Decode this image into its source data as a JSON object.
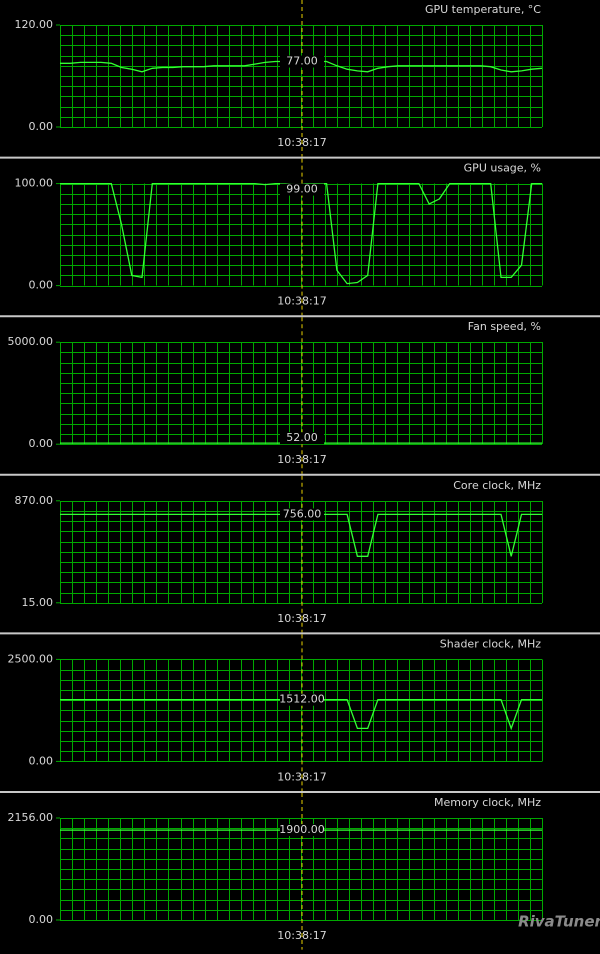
{
  "chart_data": [
    {
      "type": "line",
      "title": "GPU temperature, °C",
      "ylim": [
        0,
        120
      ],
      "yticks": [
        {
          "value": 0,
          "label": "0.00"
        },
        {
          "value": 120,
          "label": "120.00"
        }
      ],
      "grid": true,
      "cursor_time": "10:38:17",
      "cursor_value": 77,
      "cursor_value_label": "77.00",
      "color": "#33ff33",
      "categories": [
        null,
        null,
        null,
        null,
        null,
        null,
        null,
        null,
        null,
        null,
        null,
        null,
        null,
        null,
        null,
        null,
        null,
        null,
        null,
        null,
        null,
        null,
        null,
        null,
        null,
        null,
        null,
        null,
        null,
        null,
        null,
        null,
        null,
        null,
        null,
        null,
        null,
        null,
        null,
        null,
        null,
        null,
        null,
        null,
        null,
        null,
        null,
        null
      ],
      "values": [
        75,
        75,
        76,
        76,
        76,
        75,
        70,
        68,
        65,
        69,
        70,
        70,
        71,
        71,
        71,
        72,
        72,
        72,
        72,
        74,
        76,
        77,
        77,
        77,
        77,
        77,
        77,
        72,
        68,
        66,
        65,
        69,
        71,
        72,
        72,
        72,
        72,
        72,
        72,
        72,
        72,
        72,
        71,
        67,
        65,
        66,
        68,
        69
      ]
    },
    {
      "type": "line",
      "title": "GPU usage, %",
      "ylim": [
        0,
        100
      ],
      "yticks": [
        {
          "value": 0,
          "label": "0.00"
        },
        {
          "value": 100,
          "label": "100.00"
        }
      ],
      "grid": true,
      "cursor_time": "10:38:17",
      "cursor_value": 99,
      "cursor_value_label": "99.00",
      "color": "#33ff33",
      "categories": [
        null,
        null,
        null,
        null,
        null,
        null,
        null,
        null,
        null,
        null,
        null,
        null,
        null,
        null,
        null,
        null,
        null,
        null,
        null,
        null,
        null,
        null,
        null,
        null,
        null,
        null,
        null,
        null,
        null,
        null,
        null,
        null,
        null,
        null,
        null,
        null,
        null,
        null,
        null,
        null,
        null,
        null,
        null,
        null,
        null,
        null,
        null,
        null
      ],
      "values": [
        100,
        100,
        100,
        100,
        100,
        100,
        60,
        10,
        8,
        100,
        100,
        100,
        100,
        100,
        100,
        100,
        100,
        100,
        100,
        100,
        99,
        100,
        100,
        99,
        100,
        100,
        100,
        15,
        2,
        3,
        10,
        100,
        100,
        100,
        100,
        100,
        80,
        85,
        100,
        100,
        100,
        100,
        100,
        8,
        8,
        20,
        100,
        100
      ]
    },
    {
      "type": "line",
      "title": "Fan speed, %",
      "ylim": [
        0,
        5000
      ],
      "yticks": [
        {
          "value": 0,
          "label": "0.00"
        },
        {
          "value": 5000,
          "label": "5000.00"
        }
      ],
      "grid": true,
      "cursor_time": "10:38:17",
      "cursor_value": 52,
      "cursor_value_label": "52.00",
      "color": "#33ff33",
      "categories": [
        null,
        null,
        null,
        null,
        null,
        null,
        null,
        null,
        null,
        null,
        null,
        null,
        null,
        null,
        null,
        null,
        null,
        null,
        null,
        null,
        null,
        null,
        null,
        null,
        null,
        null,
        null,
        null,
        null,
        null,
        null,
        null,
        null,
        null,
        null,
        null,
        null,
        null,
        null,
        null,
        null,
        null,
        null,
        null,
        null,
        null,
        null,
        null
      ],
      "values": [
        52,
        52,
        52,
        52,
        52,
        52,
        52,
        52,
        52,
        52,
        52,
        52,
        52,
        52,
        52,
        52,
        52,
        52,
        52,
        52,
        52,
        52,
        52,
        52,
        52,
        52,
        52,
        52,
        52,
        52,
        52,
        52,
        52,
        52,
        52,
        52,
        52,
        52,
        52,
        52,
        52,
        52,
        52,
        52,
        52,
        52,
        52,
        52
      ]
    },
    {
      "type": "line",
      "title": "Core clock, MHz",
      "ylim": [
        15,
        870
      ],
      "yticks": [
        {
          "value": 15,
          "label": "15.00"
        },
        {
          "value": 870,
          "label": "870.00"
        }
      ],
      "grid": true,
      "cursor_time": "10:38:17",
      "cursor_value": 756,
      "cursor_value_label": "756.00",
      "color": "#33ff33",
      "categories": [
        null,
        null,
        null,
        null,
        null,
        null,
        null,
        null,
        null,
        null,
        null,
        null,
        null,
        null,
        null,
        null,
        null,
        null,
        null,
        null,
        null,
        null,
        null,
        null,
        null,
        null,
        null,
        null,
        null,
        null,
        null,
        null,
        null,
        null,
        null,
        null,
        null,
        null,
        null,
        null,
        null,
        null,
        null,
        null,
        null,
        null,
        null,
        null
      ],
      "values": [
        756,
        756,
        756,
        756,
        756,
        756,
        756,
        756,
        756,
        756,
        756,
        756,
        756,
        756,
        756,
        756,
        756,
        756,
        756,
        756,
        756,
        756,
        756,
        756,
        756,
        756,
        756,
        756,
        756,
        405,
        405,
        756,
        756,
        756,
        756,
        756,
        756,
        756,
        756,
        756,
        756,
        756,
        756,
        756,
        405,
        756,
        756,
        756
      ]
    },
    {
      "type": "line",
      "title": "Shader clock, MHz",
      "ylim": [
        0,
        2500
      ],
      "yticks": [
        {
          "value": 0,
          "label": "0.00"
        },
        {
          "value": 2500,
          "label": "2500.00"
        }
      ],
      "grid": true,
      "cursor_time": "10:38:17",
      "cursor_value": 1512,
      "cursor_value_label": "1512.00",
      "color": "#33ff33",
      "categories": [
        null,
        null,
        null,
        null,
        null,
        null,
        null,
        null,
        null,
        null,
        null,
        null,
        null,
        null,
        null,
        null,
        null,
        null,
        null,
        null,
        null,
        null,
        null,
        null,
        null,
        null,
        null,
        null,
        null,
        null,
        null,
        null,
        null,
        null,
        null,
        null,
        null,
        null,
        null,
        null,
        null,
        null,
        null,
        null,
        null,
        null,
        null,
        null
      ],
      "values": [
        1512,
        1512,
        1512,
        1512,
        1512,
        1512,
        1512,
        1512,
        1512,
        1512,
        1512,
        1512,
        1512,
        1512,
        1512,
        1512,
        1512,
        1512,
        1512,
        1512,
        1512,
        1512,
        1512,
        1512,
        1512,
        1512,
        1512,
        1512,
        1512,
        810,
        810,
        1512,
        1512,
        1512,
        1512,
        1512,
        1512,
        1512,
        1512,
        1512,
        1512,
        1512,
        1512,
        1512,
        810,
        1512,
        1512,
        1512
      ]
    },
    {
      "type": "line",
      "title": "Memory clock, MHz",
      "ylim": [
        0,
        2156
      ],
      "yticks": [
        {
          "value": 0,
          "label": "0.00"
        },
        {
          "value": 2156,
          "label": "2156.00"
        }
      ],
      "grid": true,
      "cursor_time": "10:38:17",
      "cursor_value": 1900,
      "cursor_value_label": "1900.00",
      "color": "#33ff33",
      "categories": [
        null,
        null,
        null,
        null,
        null,
        null,
        null,
        null,
        null,
        null,
        null,
        null,
        null,
        null,
        null,
        null,
        null,
        null,
        null,
        null,
        null,
        null,
        null,
        null,
        null,
        null,
        null,
        null,
        null,
        null,
        null,
        null,
        null,
        null,
        null,
        null,
        null,
        null,
        null,
        null,
        null,
        null,
        null,
        null,
        null,
        null,
        null,
        null
      ],
      "values": [
        1900,
        1900,
        1900,
        1900,
        1900,
        1900,
        1900,
        1900,
        1900,
        1900,
        1900,
        1900,
        1900,
        1900,
        1900,
        1900,
        1900,
        1900,
        1900,
        1900,
        1900,
        1900,
        1900,
        1900,
        1900,
        1900,
        1900,
        1900,
        1900,
        1900,
        1900,
        1900,
        1900,
        1900,
        1900,
        1900,
        1900,
        1900,
        1900,
        1900,
        1900,
        1900,
        1900,
        1900,
        1900,
        1900,
        1900,
        1900
      ]
    }
  ],
  "watermark": "RivaTuner"
}
